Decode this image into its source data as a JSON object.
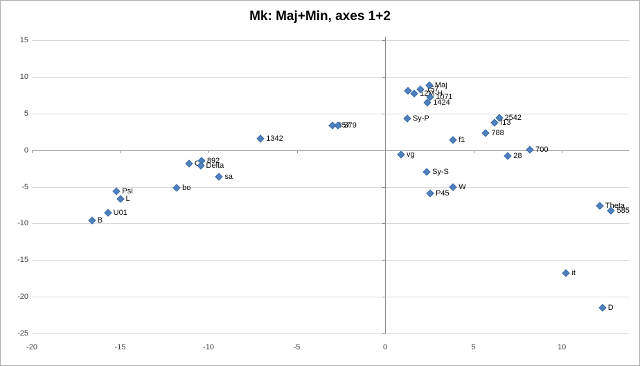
{
  "chart_data": {
    "type": "scatter",
    "title": "Mk: Maj+Min, axes 1+2",
    "xlabel": "",
    "ylabel": "",
    "xlim": [
      -20,
      13.8
    ],
    "ylim": [
      -25,
      15
    ],
    "x_ticks": [
      -20,
      -15,
      -10,
      -5,
      0,
      5,
      10
    ],
    "y_ticks": [
      15,
      10,
      5,
      0,
      -5,
      -10,
      -15,
      -20,
      -25
    ],
    "grid": "horizontal gridlines only, axis lines cross at 0",
    "legend": "none",
    "marker": {
      "shape": "diamond",
      "color": "#4F81BD",
      "edge_color": "#3A6BA5"
    },
    "colors": {
      "gridline": "#D9D9D9",
      "axis_line": "#8C8C8C",
      "tick_label": "#3F3F3F",
      "title": "#000000",
      "chart_border": "#ADADAD"
    },
    "points": [
      {
        "label": "B",
        "x": -16.6,
        "y": -9.6
      },
      {
        "label": "U01",
        "x": -15.7,
        "y": -8.5
      },
      {
        "label": "L",
        "x": -15.0,
        "y": -6.7
      },
      {
        "label": "Psi",
        "x": -15.2,
        "y": -5.6
      },
      {
        "label": "bo",
        "x": -11.8,
        "y": -5.1
      },
      {
        "label": "C",
        "x": -11.1,
        "y": -1.8
      },
      {
        "label": "892",
        "x": -10.4,
        "y": -1.5
      },
      {
        "label": "Delta",
        "x": -10.45,
        "y": -2.1
      },
      {
        "label": "sa",
        "x": -9.4,
        "y": -3.6
      },
      {
        "label": "1342",
        "x": -7.05,
        "y": 1.6
      },
      {
        "label": "357",
        "x": -3.0,
        "y": 3.35
      },
      {
        "label": "379",
        "x": -2.65,
        "y": 3.35
      },
      {
        "label": "",
        "x": 1.3,
        "y": 8.1
      },
      {
        "label": "12M-H",
        "x": 1.65,
        "y": 7.7
      },
      {
        "label": "157",
        "x": 2.0,
        "y": 8.3
      },
      {
        "label": "Maj",
        "x": 2.5,
        "y": 8.9
      },
      {
        "label": "1071",
        "x": 2.55,
        "y": 7.2
      },
      {
        "label": "1424",
        "x": 2.4,
        "y": 6.5
      },
      {
        "label": "Sy-P",
        "x": 1.25,
        "y": 4.3
      },
      {
        "label": "vg",
        "x": 0.9,
        "y": -0.6
      },
      {
        "label": "Sy-S",
        "x": 2.35,
        "y": -3.0
      },
      {
        "label": "P45",
        "x": 2.55,
        "y": -5.9
      },
      {
        "label": "W",
        "x": 3.85,
        "y": -5.0
      },
      {
        "label": "f1",
        "x": 3.85,
        "y": 1.4
      },
      {
        "label": "788",
        "x": 5.7,
        "y": 2.3
      },
      {
        "label": "f13",
        "x": 6.2,
        "y": 3.7
      },
      {
        "label": "2542",
        "x": 6.45,
        "y": 4.4
      },
      {
        "label": "28",
        "x": 6.95,
        "y": -0.8
      },
      {
        "label": "700",
        "x": 8.2,
        "y": 0.1
      },
      {
        "label": "Theta",
        "x": 12.15,
        "y": -7.6
      },
      {
        "label": "585",
        "x": 12.8,
        "y": -8.3
      },
      {
        "label": "it",
        "x": 10.25,
        "y": -16.8
      },
      {
        "label": "D",
        "x": 12.3,
        "y": -21.5
      }
    ]
  }
}
